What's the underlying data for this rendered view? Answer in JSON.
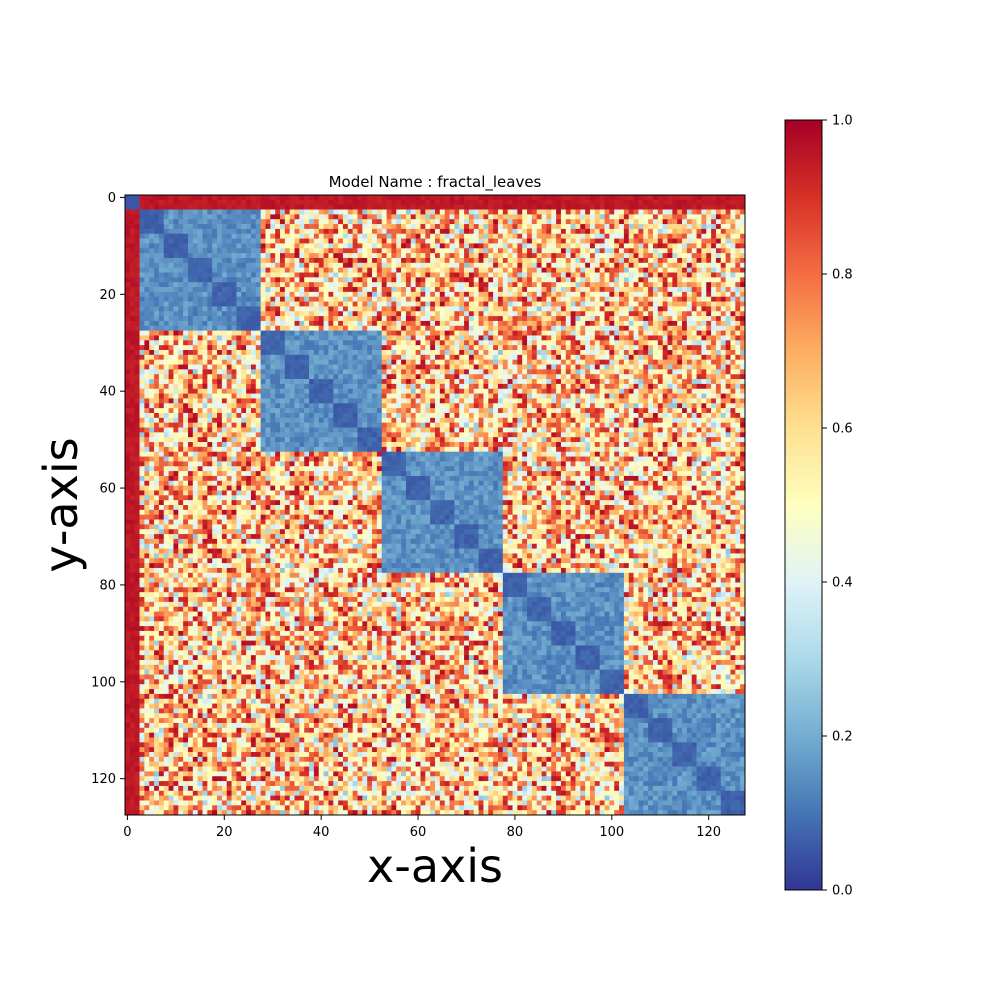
{
  "chart_data": {
    "type": "heatmap",
    "title": "Model Name : fractal_leaves",
    "xlabel": "x-axis",
    "ylabel": "y-axis",
    "rows": 128,
    "cols": 128,
    "xlim": [
      -0.5,
      127.5
    ],
    "ylim": [
      127.5,
      -0.5
    ],
    "x_ticks": [
      0,
      20,
      40,
      60,
      80,
      100,
      120
    ],
    "y_ticks": [
      0,
      20,
      40,
      60,
      80,
      100,
      120
    ],
    "x_tick_labels": [
      "0",
      "20",
      "40",
      "60",
      "80",
      "100",
      "120"
    ],
    "y_tick_labels": [
      "0",
      "20",
      "40",
      "60",
      "80",
      "100",
      "120"
    ],
    "colormap": "RdYlBu_r",
    "vmin": 0.0,
    "vmax": 1.0,
    "colorbar_ticks": [
      0.0,
      0.2,
      0.4,
      0.6,
      0.8,
      1.0
    ],
    "colorbar_tick_labels": [
      "0.0",
      "0.2",
      "0.4",
      "0.6",
      "0.8",
      "1.0"
    ],
    "grid": false,
    "structure": {
      "border_index_range": [
        0,
        2
      ],
      "border_value": 0.97,
      "corner_value": 0.05,
      "blocks": [
        {
          "start": 3,
          "end": 27
        },
        {
          "start": 28,
          "end": 52
        },
        {
          "start": 53,
          "end": 77
        },
        {
          "start": 78,
          "end": 102
        },
        {
          "start": 103,
          "end": 127
        }
      ],
      "sub_block_size": 5,
      "within_sub_block_value": 0.05,
      "within_block_value": 0.15,
      "between_block_mean": 0.68,
      "between_block_spread": 0.3
    }
  },
  "colors": {
    "colormap_stops": [
      "#313695",
      "#4575b4",
      "#74add1",
      "#abd9e9",
      "#e0f3f8",
      "#ffffbf",
      "#fee090",
      "#fdae61",
      "#f46d43",
      "#d73027",
      "#a50026"
    ]
  }
}
